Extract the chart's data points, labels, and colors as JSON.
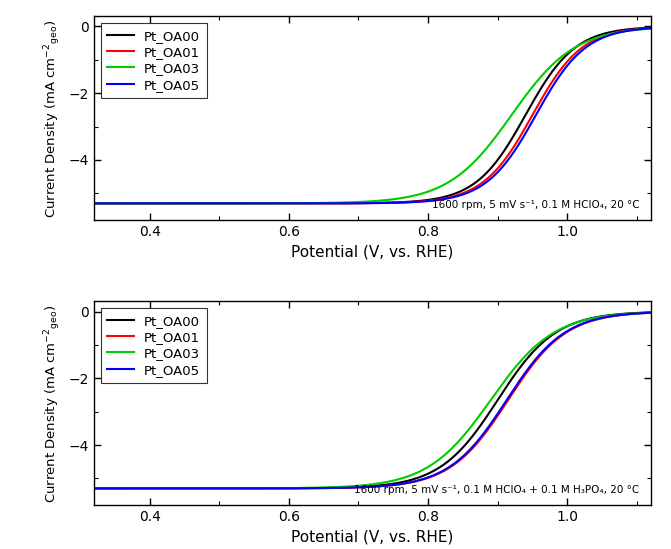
{
  "xlim": [
    0.32,
    1.12
  ],
  "ylim": [
    -5.8,
    0.3
  ],
  "xticks": [
    0.4,
    0.6,
    0.8,
    1.0
  ],
  "yticks": [
    0,
    -2,
    -4
  ],
  "xlabel": "Potential (V, vs. RHE)",
  "legend_labels": [
    "Pt_OA00",
    "Pt_OA01",
    "Pt_OA03",
    "Pt_OA05"
  ],
  "colors": [
    "black",
    "red",
    "#00cc00",
    "blue"
  ],
  "annotation_top": "1600 rpm, 5 mV s⁻¹, 0.1 M HClO₄, 20 °C",
  "annotation_bot": "1600 rpm, 5 mV s⁻¹, 0.1 M HClO₄ + 0.1 M H₃PO₄, 20 °C",
  "lim_current": -5.3,
  "figsize": [
    6.71,
    5.49
  ],
  "dpi": 100,
  "top_curves": {
    "OA00": {
      "E_half": 0.94,
      "n": 28
    },
    "OA01": {
      "E_half": 0.95,
      "n": 28
    },
    "OA03": {
      "E_half": 0.92,
      "n": 22
    },
    "OA05": {
      "E_half": 0.955,
      "n": 28
    }
  },
  "bot_curves": {
    "OA00": {
      "E_half": 0.9,
      "n": 24
    },
    "OA01": {
      "E_half": 0.915,
      "n": 24
    },
    "OA03": {
      "E_half": 0.89,
      "n": 22
    },
    "OA05": {
      "E_half": 0.913,
      "n": 24
    }
  }
}
